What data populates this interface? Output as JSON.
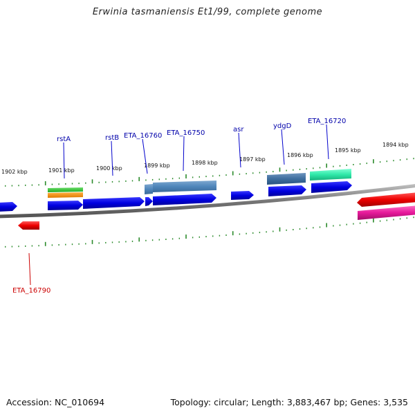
{
  "title": "Erwinia tasmaniensis Et1/99, complete genome",
  "footer": {
    "accession": "Accession: NC_010694",
    "topology": "Topology: circular; Length: 3,883,467 bp; Genes: 3,535"
  },
  "ticks": [
    "1902 kbp",
    "1901 kbp",
    "1900 kbp",
    "1899 kbp",
    "1898 kbp",
    "1897 kbp",
    "1896 kbp",
    "1895 kbp",
    "1894 kbp"
  ],
  "gene_labels": {
    "rstA": "rstA",
    "rstB": "rstB",
    "eta16760": "ETA_16760",
    "eta16750": "ETA_16750",
    "asr": "asr",
    "ydgD": "ydgD",
    "eta16720": "ETA_16720",
    "eta16790": "ETA_16790"
  },
  "colors": {
    "cds": "#0000ee",
    "gene_label": "#0000aa",
    "highlight_label": "#cc0000",
    "tick": "#2a8a2a",
    "backbone": "#888888"
  }
}
